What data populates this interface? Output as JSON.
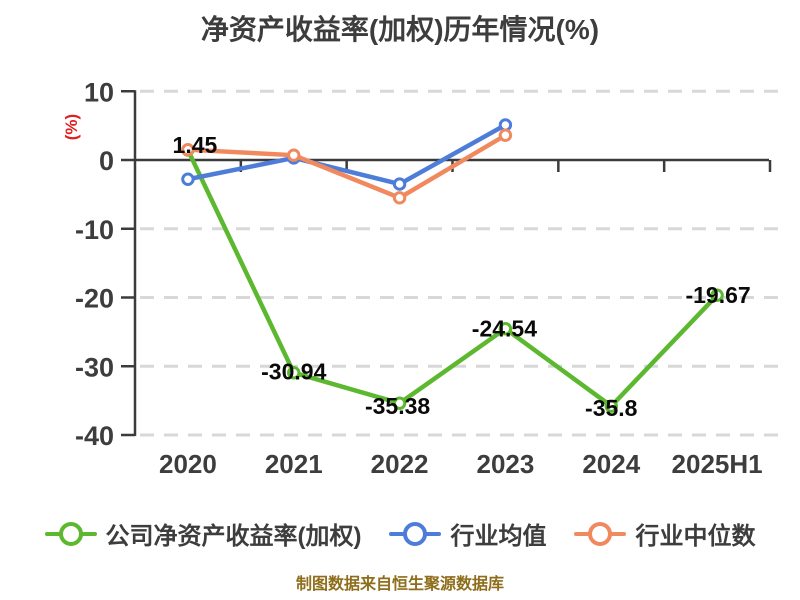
{
  "title": "净资产收益率(加权)历年情况(%)",
  "y_axis_label": "(%)",
  "footer": "制图数据来自恒生聚源数据库",
  "chart_data": {
    "type": "line",
    "categories": [
      "2020",
      "2021",
      "2022",
      "2023",
      "2024",
      "2025H1"
    ],
    "series": [
      {
        "name": "公司净资产收益率(加权)",
        "color": "#5cb82f",
        "values": [
          1.45,
          -30.94,
          -35.38,
          -24.54,
          -35.8,
          -19.67
        ],
        "point_labels": [
          "1.45",
          "-30.94",
          "-35.38",
          "-24.54",
          "-35.8",
          "-19.67"
        ]
      },
      {
        "name": "行业均值",
        "color": "#4d7cd9",
        "values": [
          -2.8,
          0.3,
          -3.5,
          5.1,
          null,
          null
        ]
      },
      {
        "name": "行业中位数",
        "color": "#f08a5e",
        "values": [
          1.5,
          0.7,
          -5.5,
          3.6,
          null,
          null
        ]
      }
    ],
    "ylim": [
      -40,
      10
    ],
    "yticks": [
      10,
      0,
      -10,
      -20,
      -30,
      -40
    ],
    "xlabel": "",
    "ylabel": "(%)",
    "grid": "horizontal-dashed",
    "zero_line": true,
    "legend_position": "bottom",
    "marker": "circle-white-fill"
  },
  "colors": {
    "background": "#ffffff",
    "title": "#3d3d3d",
    "axis": "#3b3b3b",
    "grid": "#d8d8d8",
    "tick_labels": "#3d3d3d",
    "data_labels": "#0a0a0a",
    "y_axis_label": "#e01f1f",
    "footer": "#8e6e1c"
  }
}
